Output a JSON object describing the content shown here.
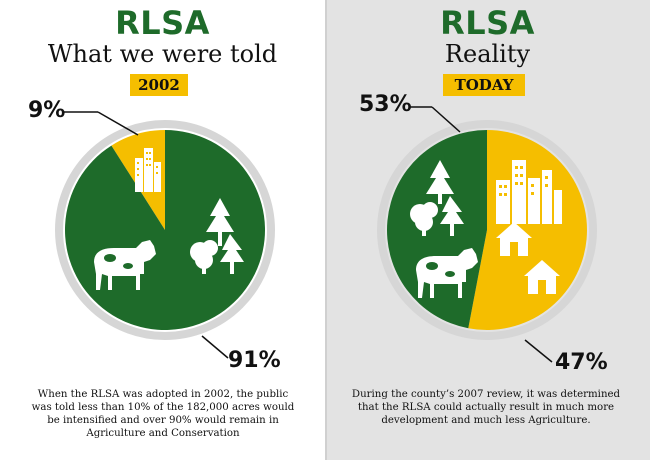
{
  "chart_data": [
    {
      "type": "pie",
      "title": "RLSA",
      "subtitle": "What we were told",
      "badge": "2002",
      "slices": [
        {
          "label": "Intensified",
          "value": 9,
          "display": "9%",
          "color": "#f5be00"
        },
        {
          "label": "Agriculture and Conservation",
          "value": 91,
          "display": "91%",
          "color": "#1e6b2a"
        }
      ],
      "caption": "When the RLSA was adopted in 2002, the public was told less than 10% of the 182,000 acres would be intensified and over 90% would remain in Agriculture and Conservation"
    },
    {
      "type": "pie",
      "title": "RLSA",
      "subtitle": "Reality",
      "badge": "TODAY",
      "slices": [
        {
          "label": "Development",
          "value": 53,
          "display": "53%",
          "color": "#f5be00"
        },
        {
          "label": "Agriculture",
          "value": 47,
          "display": "47%",
          "color": "#1e6b2a"
        }
      ],
      "caption": "During the county’s 2007 review, it was determined that the RLSA could actually result in much more development and much less Agriculture."
    }
  ],
  "colors": {
    "green": "#1e6b2a",
    "yellow": "#f5be00",
    "ring": "#d6d6d6"
  },
  "icons": [
    "buildings-icon",
    "trees-icon",
    "cow-icon",
    "house-icon"
  ]
}
